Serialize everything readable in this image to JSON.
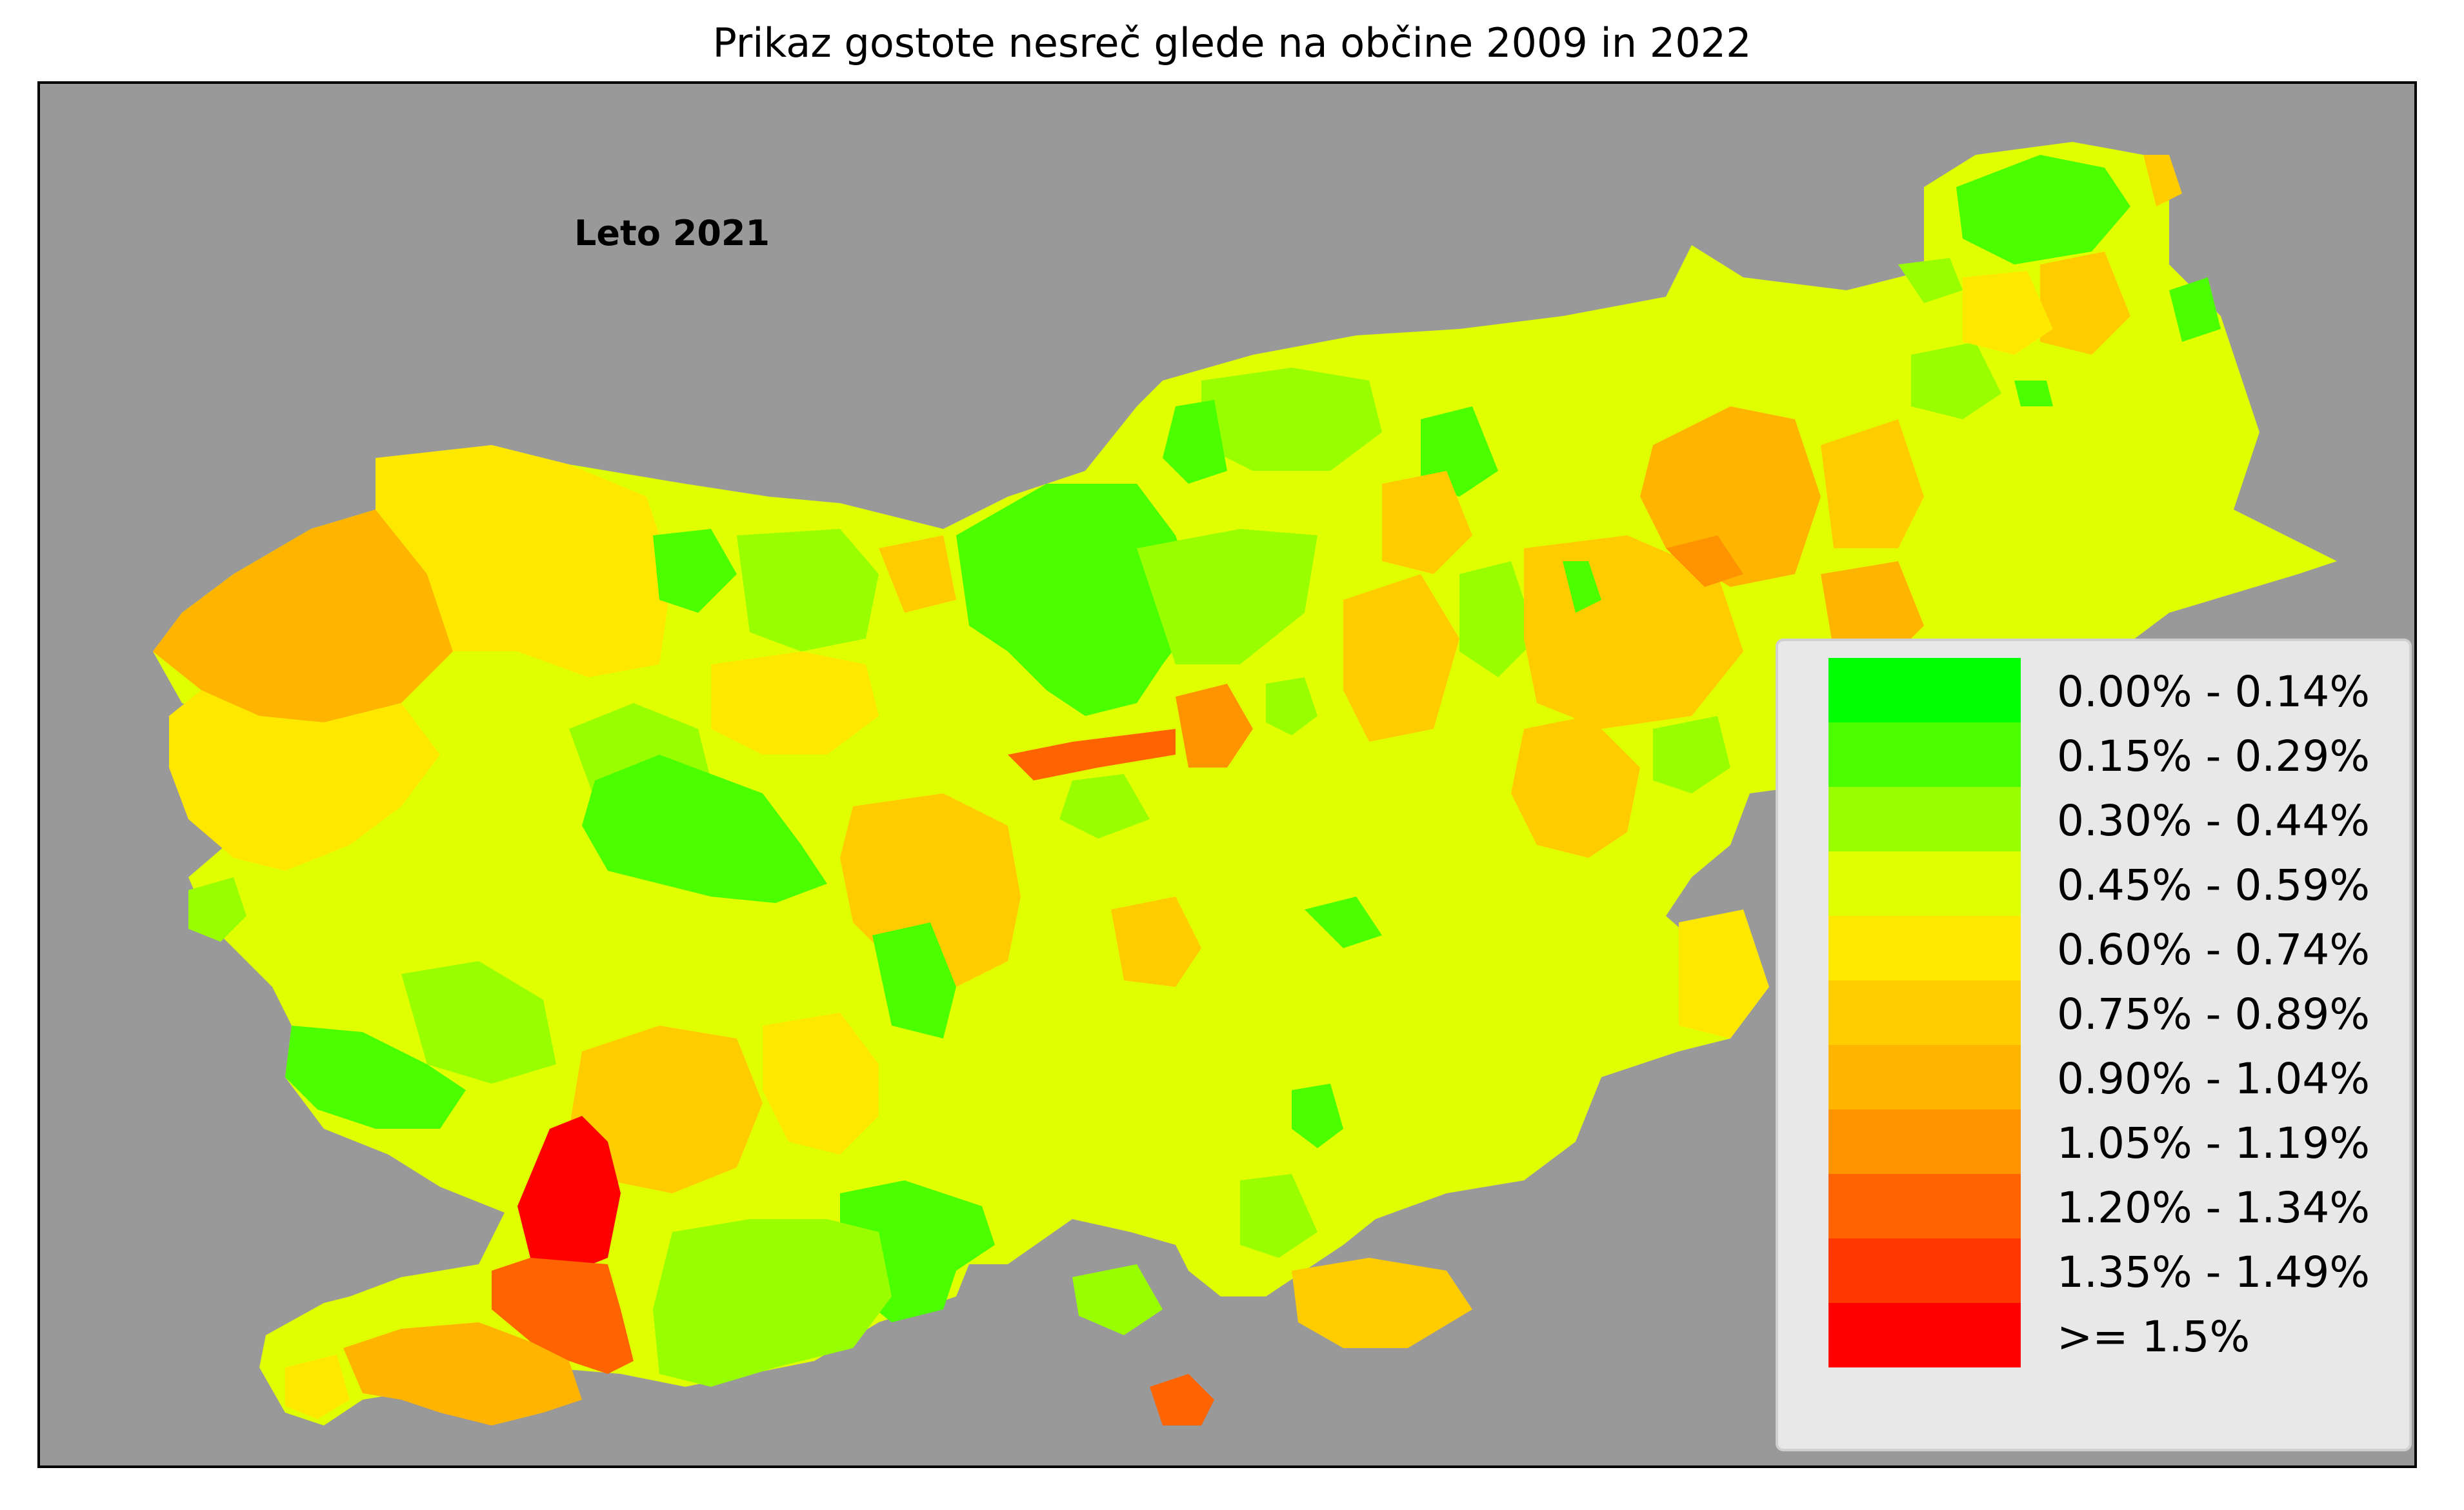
{
  "title": "Prikaz gostote nesreč glede na občine 2009 in 2022",
  "year_label": "Leto 2021",
  "colors": {
    "background": "#999999",
    "frame": "#000000"
  },
  "legend": {
    "items": [
      {
        "label": "0.00% - 0.14%",
        "color": "#00ff00"
      },
      {
        "label": "0.15% - 0.29%",
        "color": "#4cff00"
      },
      {
        "label": "0.30% - 0.44%",
        "color": "#99ff00"
      },
      {
        "label": "0.45% - 0.59%",
        "color": "#e0ff00"
      },
      {
        "label": "0.60% - 0.74%",
        "color": "#ffe800"
      },
      {
        "label": "0.75% - 0.89%",
        "color": "#ffcc00"
      },
      {
        "label": "0.90% - 1.04%",
        "color": "#ffb400"
      },
      {
        "label": "1.05% - 1.19%",
        "color": "#ff9400"
      },
      {
        "label": "1.20% - 1.34%",
        "color": "#ff6400"
      },
      {
        "label": "1.35% - 1.49%",
        "color": "#ff3800"
      },
      {
        "label": ">= 1.5%",
        "color": "#ff0000"
      }
    ]
  }
}
